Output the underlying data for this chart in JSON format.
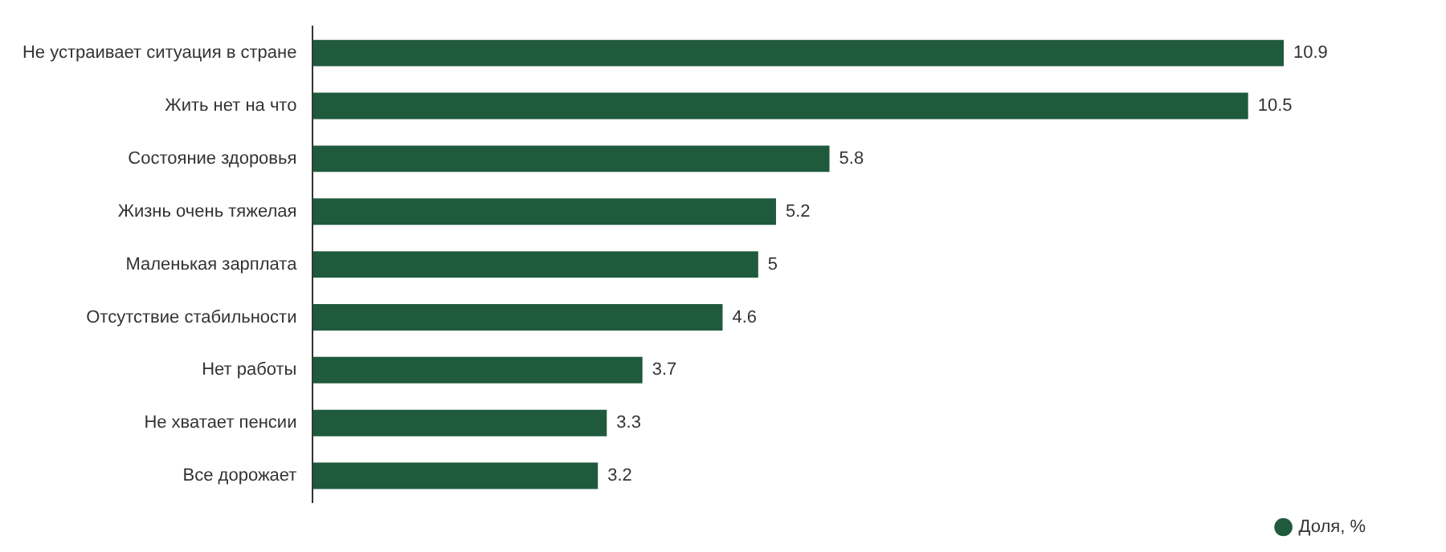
{
  "chart_data": {
    "type": "bar",
    "orientation": "horizontal",
    "categories": [
      "Не устраивает ситуация в стране",
      "Жить нет на что",
      "Состояние здоровья",
      "Жизнь очень тяжелая",
      "Маленькая зарплата",
      "Отсутствие стабильности",
      "Нет работы",
      "Не хватает пенсии",
      "Все дорожает"
    ],
    "series": [
      {
        "name": "Доля, %",
        "color": "#1f5a3d",
        "values": [
          10.9,
          10.5,
          5.8,
          5.2,
          5,
          4.6,
          3.7,
          3.3,
          3.2
        ]
      }
    ],
    "data_labels": true,
    "legend": "bottom right"
  }
}
